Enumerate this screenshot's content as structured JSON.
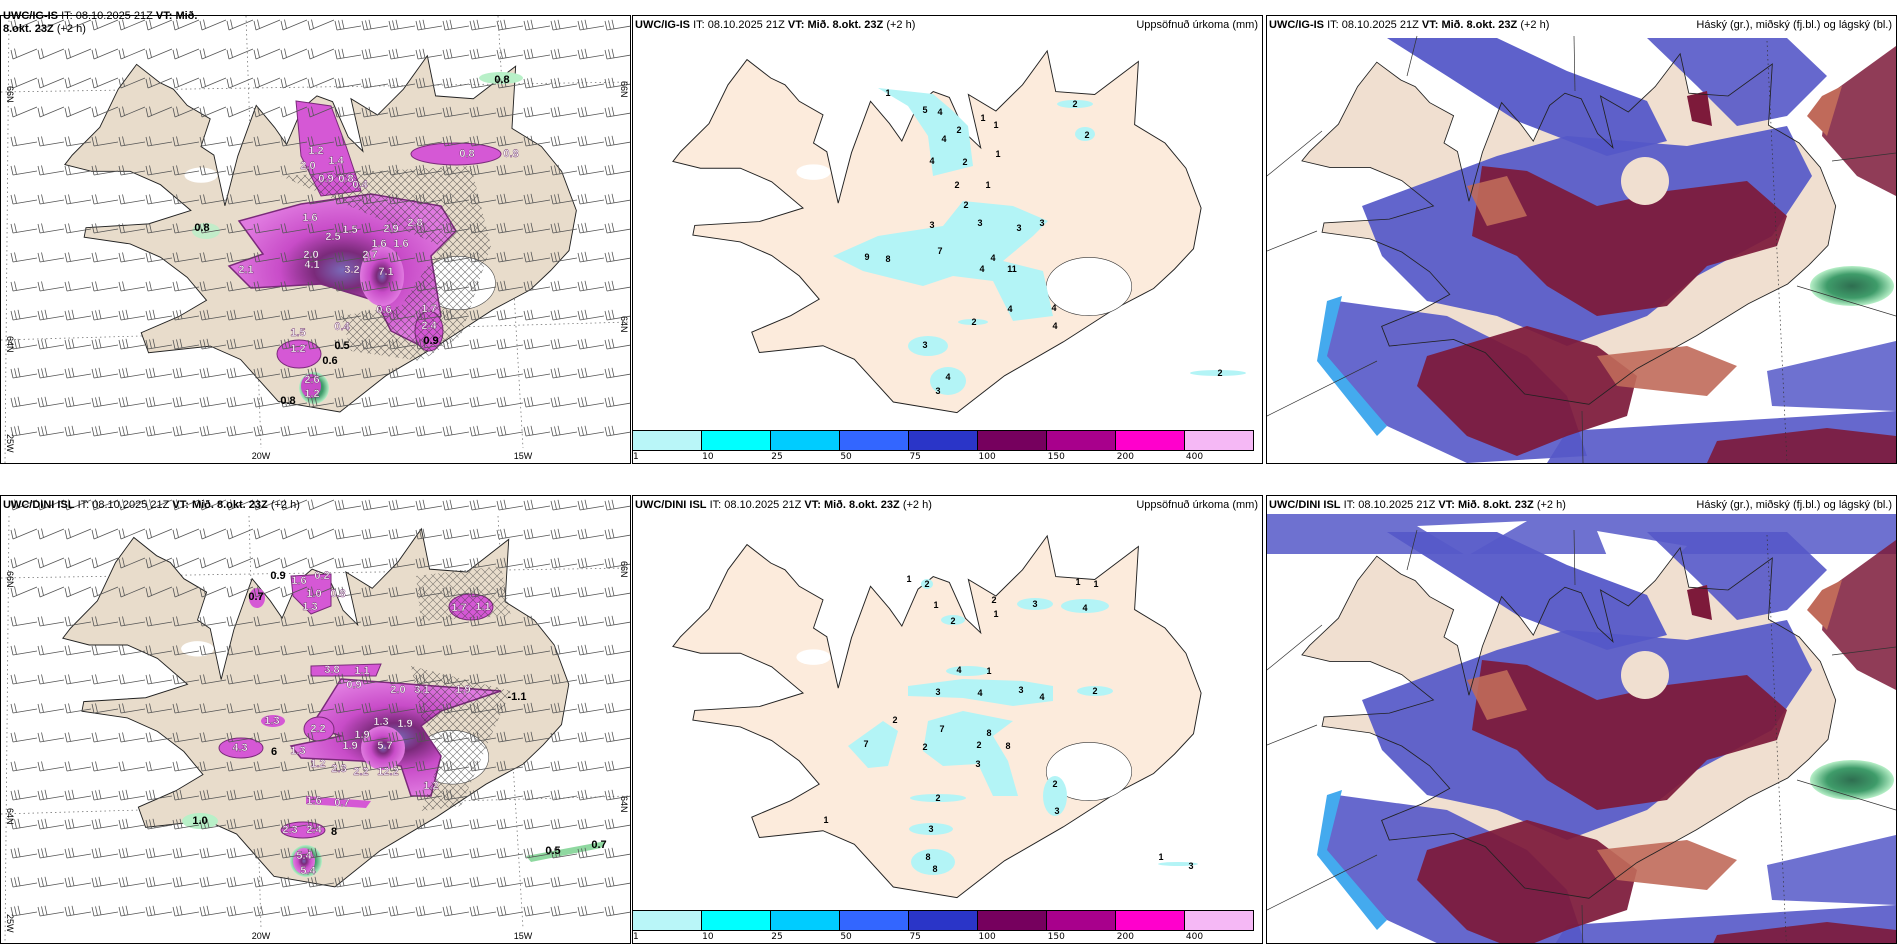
{
  "panels": {
    "top_left": {
      "model": "UWC/IG-IS",
      "it_label": "IT:",
      "it": "08.10.2025 21Z",
      "vt_label": "VT:",
      "vt": "Mið. 8.okt. 23Z",
      "lead": "(+2 h)",
      "lon_labels": [
        "20W",
        "15W",
        "25W"
      ],
      "lat_labels": [
        "64N",
        "66N"
      ],
      "values": [
        "0.8",
        "1.2",
        "2.0",
        "0.9",
        "0.8",
        "1.4",
        "0.4",
        "0.8",
        "0.8",
        "1.6",
        "1.5",
        "2.9",
        "2.8",
        "1.6",
        "1.6",
        "2.5",
        "2.0",
        "0.8",
        "2.1",
        "4.1",
        "3.2",
        "2.7",
        "7.1",
        "0.6",
        "1.7",
        "2.4",
        "0.9",
        "0.4",
        "1.5",
        "1.2",
        "0.5",
        "0.6",
        "2.6",
        "1.2",
        "0.8"
      ]
    },
    "top_middle": {
      "model": "UWC/IG-IS",
      "it_label": "IT:",
      "it": "08.10.2025 21Z",
      "vt_label": "VT:",
      "vt": "Mið. 8.okt. 23Z",
      "lead": "(+2 h)",
      "field": "Uppsöfnuð úrkoma (mm)",
      "values": [
        "1",
        "5",
        "4",
        "2",
        "4",
        "4",
        "2",
        "1",
        "1",
        "1",
        "2",
        "2",
        "2",
        "1",
        "2",
        "3",
        "3",
        "3",
        "3",
        "9",
        "8",
        "7",
        "4",
        "4",
        "11",
        "4",
        "4",
        "4",
        "2",
        "3",
        "4",
        "3",
        "2"
      ]
    },
    "top_right": {
      "model": "UWC/IG-IS",
      "it_label": "IT:",
      "it": "08.10.2025 21Z",
      "vt_label": "VT:",
      "vt": "Mið. 8.okt. 23Z",
      "lead": "(+2 h)",
      "field": "Háský (gr.), miðský (fj.bl.) og lágský (bl.)"
    },
    "bottom_left": {
      "model": "UWC/DINI ISL",
      "it_label": "IT:",
      "it": "08.10.2025 21Z",
      "vt_label": "VT:",
      "vt": "Mið. 8.okt. 23Z",
      "lead": "(+2 h)",
      "lon_labels": [
        "20W",
        "15W",
        "25W"
      ],
      "lat_labels": [
        "64N",
        "66N"
      ],
      "values": [
        "0.9",
        "1.6",
        "0.2",
        "1.0",
        "0.8",
        "0.7",
        "1.3",
        "1.7",
        "1.1",
        "3.8",
        "1.1",
        "0.9",
        "2.0",
        "3.1",
        "1.9",
        "-1.1",
        "1.3",
        "2.2",
        "1.3",
        "1.9",
        "1.9",
        "4.3",
        "1.9",
        "5.7",
        "1.3",
        "1.2",
        "2.3",
        "2.2",
        "12.2",
        "6",
        "1.2",
        "1.6",
        "0.7",
        "1.0",
        "2.3",
        "2.4",
        "8",
        "5.4",
        "5.4",
        "0.5",
        "0.7"
      ]
    },
    "bottom_middle": {
      "model": "UWC/DINI ISL",
      "it_label": "IT:",
      "it": "08.10.2025 21Z",
      "vt_label": "VT:",
      "vt": "Mið. 8.okt. 23Z",
      "lead": "(+2 h)",
      "field": "Uppsöfnuð úrkoma (mm)",
      "values": [
        "1",
        "2",
        "1",
        "2",
        "2",
        "1",
        "3",
        "1",
        "1",
        "4",
        "4",
        "1",
        "3",
        "4",
        "3",
        "4",
        "2",
        "2",
        "7",
        "7",
        "8",
        "2",
        "2",
        "8",
        "3",
        "2",
        "3",
        "2",
        "1",
        "3",
        "8",
        "8",
        "1",
        "3"
      ]
    },
    "bottom_right": {
      "model": "UWC/DINI ISL",
      "it_label": "IT:",
      "it": "08.10.2025 21Z",
      "vt_label": "VT:",
      "vt": "Mið. 8.okt. 23Z",
      "lead": "(+2 h)",
      "field": "Háský (gr.), miðský (fj.bl.) og lágský (bl.)"
    }
  },
  "colorbar": {
    "labels": [
      "1",
      "10",
      "25",
      "50",
      "75",
      "100",
      "150",
      "200",
      "400"
    ],
    "colors": [
      "#b9f6f8",
      "#00ffff",
      "#00ccff",
      "#3366ff",
      "#2a35c8",
      "#76005e",
      "#a8008c",
      "#ff00cc",
      "#f5b8f5"
    ]
  },
  "colors": {
    "land_wind": "#e8dccb",
    "land_precip": "#fcebdc",
    "land_cloud": "#f0dfd0",
    "precip_cyan": "#b3f4f6",
    "cloud_high": "#7d1a3a",
    "cloud_mid": "#5558c8",
    "cloud_low_light": "#c06a5a",
    "precip_magenta": "#d558d5"
  }
}
